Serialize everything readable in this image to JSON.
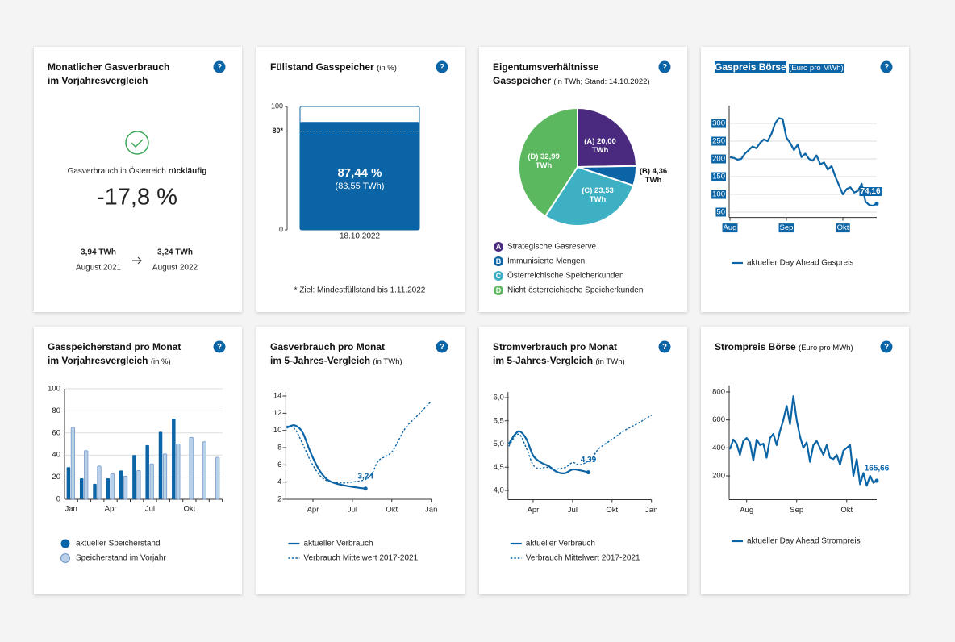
{
  "help_icon": "?",
  "kpi": {
    "title": [
      "Monatlicher Gasverbrauch",
      "im Vorjahresvergleich"
    ],
    "text": "Gasverbrauch in Österreich",
    "text_bold": "rückläufig",
    "value": "-17,8 %",
    "from": {
      "value": "3,94 TWh",
      "label": "August 2021"
    },
    "to": {
      "value": "3,24 TWh",
      "label": "August 2022"
    }
  },
  "chart_data": [
    {
      "type": "bar",
      "title": [
        "Füllstand Gasspeicher"
      ],
      "subtitle": "(in %)",
      "categories": [
        "18.10.2022"
      ],
      "values": [
        87.44
      ],
      "value_labels": [
        "87,44 %"
      ],
      "secondary_labels": [
        "(83,55 TWh)"
      ],
      "target": 80,
      "ylim": [
        0,
        100
      ],
      "yticks": [
        0,
        {
          "value": 80,
          "label": "80*"
        },
        100
      ],
      "color": "#0b64a5",
      "note": "* Ziel: Mindestfüllstand bis 1.11.2022"
    },
    {
      "type": "pie",
      "title": [
        "Eigentumsverhältnisse",
        "Gasspeicher"
      ],
      "subtitle": "(in TWh; Stand: 14.10.2022)",
      "categories": [
        "Strategische Gasreserve",
        "Immunisierte Mengen",
        "Österreichische Speicherkunden",
        "Nicht-österreichische Speicherkunden"
      ],
      "letters": [
        "A",
        "B",
        "C",
        "D"
      ],
      "values": [
        20.0,
        4.36,
        23.53,
        32.99
      ],
      "value_labels": [
        "(A) 20,00 TWh",
        "(B) 4,36 TWh",
        "(C) 23,53 TWh",
        "(D) 32,99 TWh"
      ],
      "colors": [
        "#4a2a7e",
        "#0b64a5",
        "#3db1c3",
        "#5cb85f"
      ]
    },
    {
      "type": "line",
      "title": [
        "Gaspreis Börse"
      ],
      "subtitle": "(Euro pro MWh)",
      "highlight": true,
      "grid": true,
      "categories": [
        "Aug",
        null,
        null,
        null,
        null,
        null,
        null,
        null,
        null,
        null,
        null,
        null,
        null,
        null,
        null,
        "Sep",
        null,
        null,
        null,
        null,
        null,
        null,
        null,
        null,
        null,
        null,
        null,
        null,
        null,
        null,
        "Okt",
        null,
        null,
        null,
        null,
        null,
        null,
        null,
        null,
        null
      ],
      "series": [
        {
          "name": "aktueller Day Ahead Gaspreis",
          "color": "#0b64a5",
          "values": [
            205,
            203,
            198,
            200,
            215,
            225,
            235,
            230,
            245,
            255,
            250,
            270,
            300,
            315,
            312,
            260,
            245,
            225,
            240,
            205,
            215,
            200,
            195,
            210,
            185,
            190,
            170,
            180,
            150,
            125,
            100,
            115,
            120,
            105,
            110,
            130,
            80,
            70,
            68,
            74.16
          ]
        }
      ],
      "end_label": "74,16",
      "ylim": [
        35,
        350
      ],
      "yticks": [
        50,
        100,
        150,
        200,
        250,
        300
      ]
    },
    {
      "type": "grouped_bar",
      "title": [
        "Gasspeicherstand pro Monat",
        "im Vorjahresvergleich"
      ],
      "subtitle": "(in %)",
      "grid": true,
      "categories": [
        "Jan",
        null,
        null,
        "Apr",
        null,
        null,
        "Jul",
        null,
        null,
        "Okt",
        null,
        null
      ],
      "series": [
        {
          "name": "aktueller Speicherstand",
          "color": "#0b64a5",
          "values": [
            29,
            19,
            14,
            19,
            26,
            40,
            49,
            61,
            73,
            null,
            null,
            null
          ]
        },
        {
          "name": "Speicherstand im Vorjahr",
          "color": "#b9d0ea",
          "values": [
            65,
            44,
            30,
            23,
            21,
            26,
            32,
            41,
            50,
            56,
            52,
            38
          ]
        }
      ],
      "ylim": [
        0,
        100
      ],
      "yticks": [
        0,
        20,
        40,
        60,
        80,
        100
      ]
    },
    {
      "type": "line",
      "title": [
        "Gasverbrauch pro Monat",
        "im 5-Jahres-Vergleich"
      ],
      "subtitle": "(in TWh)",
      "smooth": true,
      "xlim": [
        2,
        13
      ],
      "xticks": [
        {
          "value": 4,
          "label": "Apr"
        },
        {
          "value": 7,
          "label": "Jul"
        },
        {
          "value": 10,
          "label": "Okt"
        },
        {
          "value": 13,
          "label": "Jan"
        }
      ],
      "series": [
        {
          "name": "aktueller Verbrauch",
          "color": "#0b64a5",
          "dashed": false,
          "x": [
            2,
            2.6,
            3.2,
            3.8,
            4.4,
            5,
            5.6,
            6.4,
            7.2,
            8
          ],
          "values": [
            10.3,
            10.6,
            9.8,
            7.5,
            5.6,
            4.4,
            3.9,
            3.6,
            3.4,
            3.24
          ]
        },
        {
          "name": "Verbrauch Mittelwert 2017-2021",
          "color": "#0b64a5",
          "dashed": true,
          "x": [
            2,
            2.6,
            3.2,
            3.8,
            4.4,
            5,
            6,
            7,
            8,
            8.5,
            9,
            10,
            11,
            12,
            13
          ],
          "values": [
            10.5,
            10.2,
            8.5,
            6.5,
            5,
            4.2,
            3.9,
            4.0,
            4.3,
            5,
            6.5,
            7.5,
            10.2,
            11.8,
            13.4
          ]
        }
      ],
      "end_label": "3,24",
      "ylim": [
        2,
        14.5
      ],
      "yticks": [
        2,
        4,
        6,
        8,
        10,
        12,
        14
      ]
    },
    {
      "type": "line",
      "title": [
        "Stromverbrauch pro Monat",
        "im 5-Jahres-Vergleich"
      ],
      "subtitle": "(in TWh)",
      "smooth": true,
      "xlim": [
        2.15,
        13
      ],
      "xticks": [
        {
          "value": 4,
          "label": "Apr"
        },
        {
          "value": 7,
          "label": "Jul"
        },
        {
          "value": 10,
          "label": "Okt"
        },
        {
          "value": 13,
          "label": "Jan"
        }
      ],
      "series": [
        {
          "name": "aktueller Verbrauch",
          "color": "#0b64a5",
          "dashed": false,
          "x": [
            2.15,
            2.6,
            3,
            3.5,
            4,
            4.6,
            5.2,
            5.8,
            6.4,
            7,
            7.6,
            8.2
          ],
          "values": [
            5.0,
            5.2,
            5.27,
            5.1,
            4.75,
            4.6,
            4.52,
            4.4,
            4.37,
            4.45,
            4.43,
            4.39
          ]
        },
        {
          "name": "Verbrauch Mittelwert 2017-2021",
          "color": "#0b64a5",
          "dashed": true,
          "x": [
            2.15,
            2.6,
            3,
            3.5,
            4,
            4.5,
            5,
            5.5,
            6,
            6.5,
            7,
            7.5,
            8,
            8.5,
            9,
            10,
            11,
            12,
            13
          ],
          "values": [
            4.95,
            5.15,
            5.2,
            4.9,
            4.55,
            4.47,
            4.5,
            4.45,
            4.47,
            4.5,
            4.6,
            4.55,
            4.6,
            4.7,
            4.9,
            5.1,
            5.3,
            5.45,
            5.62
          ]
        }
      ],
      "end_label": "4,39",
      "ylim": [
        3.8,
        6.12
      ],
      "yticks": [
        {
          "value": 4,
          "label": "4,0"
        },
        {
          "value": 4.5,
          "label": "4,5"
        },
        {
          "value": 5,
          "label": "5,0"
        },
        {
          "value": 5.5,
          "label": "5,5"
        },
        {
          "value": 6,
          "label": "6,0"
        }
      ]
    },
    {
      "type": "line",
      "title": [
        "Strompreis Börse"
      ],
      "subtitle": "(Euro pro MWh)",
      "categories": [
        null,
        null,
        null,
        null,
        null,
        "Aug",
        null,
        null,
        null,
        null,
        null,
        null,
        null,
        null,
        null,
        null,
        null,
        null,
        null,
        null,
        "Sep",
        null,
        null,
        null,
        null,
        null,
        null,
        null,
        null,
        null,
        null,
        null,
        null,
        null,
        null,
        "Okt",
        null,
        null,
        null,
        null,
        null,
        null,
        null,
        null,
        null
      ],
      "series": [
        {
          "name": "aktueller Day Ahead Strompreis",
          "color": "#0b64a5",
          "values": [
            390,
            460,
            430,
            350,
            450,
            470,
            440,
            310,
            460,
            420,
            430,
            330,
            470,
            500,
            420,
            520,
            600,
            700,
            570,
            770,
            600,
            480,
            400,
            440,
            300,
            420,
            450,
            400,
            350,
            420,
            330,
            320,
            350,
            280,
            380,
            400,
            420,
            200,
            320,
            140,
            220,
            130,
            200,
            150,
            165.66
          ]
        }
      ],
      "end_label": "165,66",
      "ylim": [
        30,
        846
      ],
      "yticks": [
        200,
        400,
        600,
        800
      ]
    }
  ]
}
